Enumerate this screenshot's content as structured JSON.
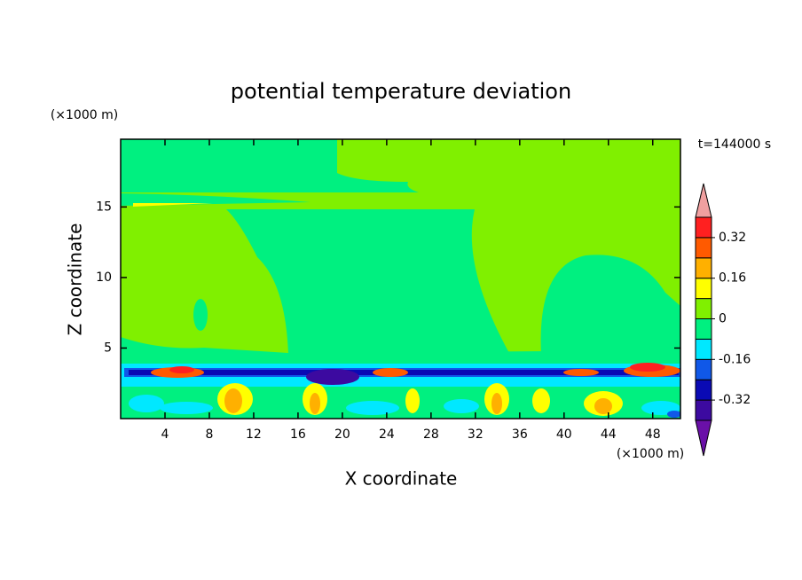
{
  "chart_data": {
    "type": "contour",
    "title": "potential temperature deviation",
    "xlabel": "X coordinate",
    "ylabel": "Z coordinate",
    "x_unit": "(×1000 m)",
    "y_unit": "(×1000 m)",
    "time_label": "t=144000 s",
    "xlim": [
      0,
      50.5
    ],
    "ylim": [
      0,
      19.8
    ],
    "xticks": [
      4,
      8,
      12,
      16,
      20,
      24,
      28,
      32,
      36,
      40,
      44,
      48
    ],
    "yticks": [
      5,
      10,
      15
    ],
    "levels": [
      -0.4,
      -0.32,
      -0.24,
      -0.16,
      -0.08,
      0,
      0.08,
      0.16,
      0.24,
      0.32,
      0.4
    ],
    "colors": [
      "#3c0aa0",
      "#0a0ab4",
      "#1058e8",
      "#00e8ff",
      "#00f080",
      "#80f000",
      "#ffff00",
      "#ffb000",
      "#ff5a00",
      "#ff2020"
    ],
    "under_color": "#6a10a8",
    "over_color": "#f0a0a0",
    "colorbar_ticks": [
      0.32,
      0.16,
      0,
      -0.16,
      -0.32
    ]
  }
}
